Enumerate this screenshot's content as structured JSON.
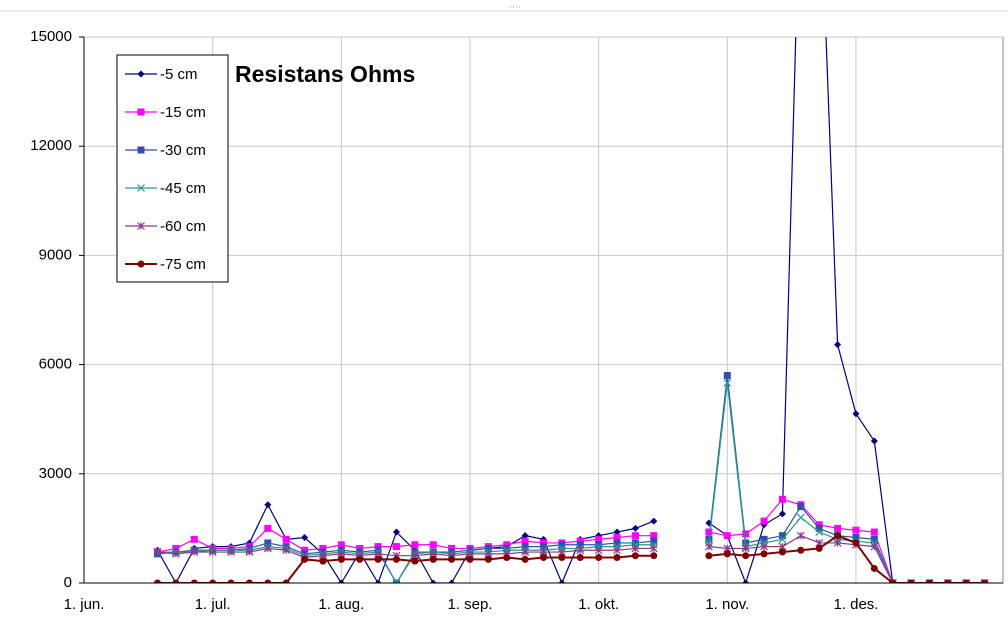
{
  "chart_data": {
    "type": "line",
    "title": "Resistans Ohms",
    "categories": [
      "1. jun.",
      null,
      null,
      null,
      null,
      null,
      null,
      "1. jul.",
      null,
      null,
      null,
      null,
      null,
      null,
      "1. aug.",
      null,
      null,
      null,
      null,
      null,
      null,
      "1. sep.",
      null,
      null,
      null,
      null,
      null,
      null,
      "1. okt.",
      null,
      null,
      null,
      null,
      null,
      null,
      "1. nov.",
      null,
      null,
      null,
      null,
      null,
      null,
      "1. des.",
      null,
      null,
      null,
      null,
      null,
      null,
      null
    ],
    "ylim": [
      0,
      15000
    ],
    "yticks": [
      0,
      3000,
      6000,
      9000,
      12000,
      15000
    ],
    "grid": true,
    "legend": "top-left",
    "series": [
      {
        "name": "-5 cm",
        "color": "#000080",
        "marker": "diamond",
        "values": [
          null,
          null,
          null,
          null,
          900,
          0,
          950,
          1000,
          1000,
          1100,
          2150,
          1200,
          1250,
          800,
          0,
          850,
          0,
          1400,
          900,
          0,
          0,
          900,
          950,
          1000,
          1300,
          1200,
          0,
          1200,
          1300,
          1400,
          1500,
          1700,
          null,
          null,
          1650,
          1300,
          0,
          1600,
          1900,
          20000,
          20000,
          6550,
          4650,
          3900,
          0,
          0,
          0,
          0,
          0,
          0
        ]
      },
      {
        "name": "-15 cm",
        "color": "#ff00ff",
        "marker": "square",
        "values": [
          null,
          null,
          null,
          null,
          850,
          950,
          1200,
          950,
          950,
          1000,
          1500,
          1200,
          900,
          950,
          1050,
          950,
          1000,
          1000,
          1050,
          1050,
          950,
          950,
          1000,
          1050,
          1150,
          1100,
          1100,
          1150,
          1200,
          1250,
          1300,
          1300,
          null,
          null,
          1400,
          1300,
          1350,
          1700,
          2300,
          2150,
          1600,
          1500,
          1450,
          1400,
          0,
          0,
          0,
          0,
          0,
          0
        ]
      },
      {
        "name": "-30 cm",
        "color": "#3050b0",
        "marker": "square",
        "values": [
          null,
          null,
          null,
          null,
          800,
          850,
          900,
          900,
          900,
          950,
          1100,
          1000,
          800,
          850,
          900,
          850,
          900,
          0,
          850,
          850,
          850,
          900,
          950,
          950,
          1000,
          1000,
          1050,
          1050,
          1050,
          1100,
          1100,
          1150,
          null,
          null,
          1200,
          5700,
          1100,
          1200,
          1300,
          2100,
          1500,
          1300,
          1250,
          1200,
          0,
          0,
          0,
          0,
          0,
          0
        ]
      },
      {
        "name": "-45 cm",
        "color": "#2a9a8a",
        "marker": "x",
        "values": [
          null,
          null,
          null,
          null,
          850,
          850,
          850,
          900,
          900,
          900,
          1000,
          950,
          750,
          800,
          850,
          800,
          850,
          0,
          800,
          850,
          800,
          850,
          850,
          900,
          900,
          900,
          950,
          950,
          1000,
          1000,
          1050,
          1050,
          null,
          null,
          1100,
          5500,
          1000,
          1100,
          1200,
          1800,
          1400,
          1200,
          1150,
          1100,
          0,
          0,
          0,
          0,
          0,
          0
        ]
      },
      {
        "name": "-60 cm",
        "color": "#8b3a8b",
        "marker": "star",
        "values": [
          null,
          null,
          null,
          null,
          850,
          800,
          850,
          850,
          850,
          850,
          950,
          900,
          700,
          750,
          800,
          750,
          800,
          750,
          750,
          800,
          750,
          800,
          800,
          800,
          850,
          850,
          850,
          900,
          900,
          900,
          950,
          950,
          null,
          null,
          1000,
          950,
          950,
          1000,
          1000,
          1300,
          1100,
          1100,
          1050,
          1000,
          0,
          0,
          0,
          0,
          0,
          0
        ]
      },
      {
        "name": "-75 cm",
        "color": "#800000",
        "marker": "circle",
        "values": [
          null,
          null,
          null,
          null,
          0,
          0,
          0,
          0,
          0,
          0,
          0,
          0,
          650,
          600,
          650,
          650,
          650,
          650,
          600,
          650,
          650,
          650,
          650,
          700,
          650,
          700,
          700,
          700,
          700,
          700,
          750,
          750,
          null,
          null,
          750,
          800,
          750,
          800,
          850,
          900,
          950,
          1300,
          1100,
          400,
          0,
          0,
          0,
          0,
          0,
          0
        ]
      }
    ]
  }
}
